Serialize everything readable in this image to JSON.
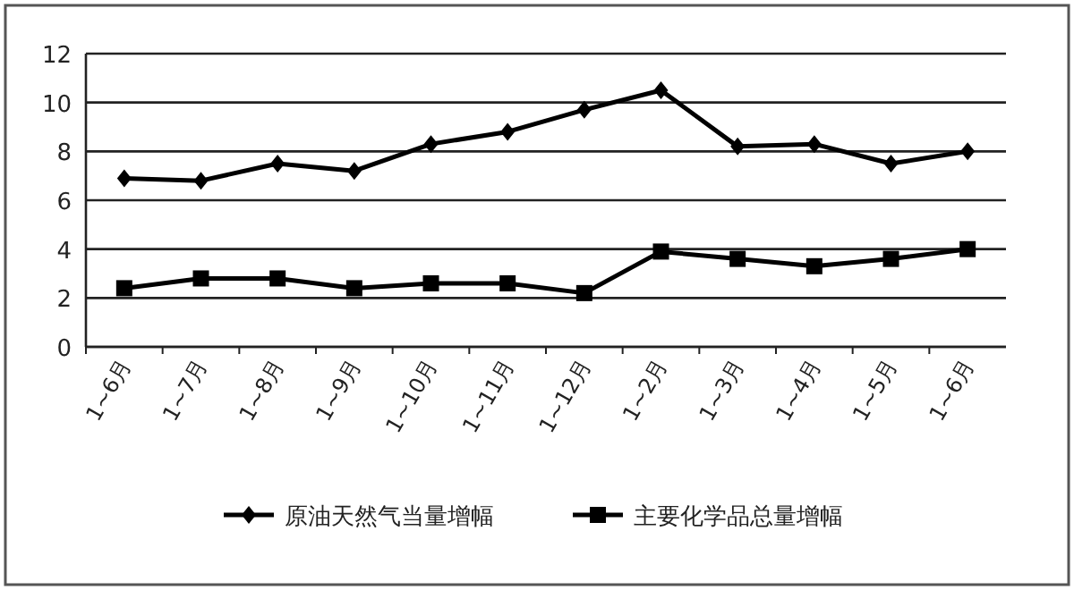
{
  "chart_data": {
    "type": "line",
    "categories": [
      "1~6月",
      "1~7月",
      "1~8月",
      "1~9月",
      "1~10月",
      "1~11月",
      "1~12月",
      "1~2月",
      "1~3月",
      "1~4月",
      "1~5月",
      "1~6月"
    ],
    "series": [
      {
        "name": "原油天然气当量增幅",
        "color": "#000000",
        "marker": "diamond",
        "values": [
          6.9,
          6.8,
          7.5,
          7.2,
          8.3,
          8.8,
          9.7,
          10.5,
          8.2,
          8.3,
          7.5,
          8.0
        ]
      },
      {
        "name": "主要化学品总量增幅",
        "color": "#000000",
        "marker": "square",
        "values": [
          2.4,
          2.8,
          2.8,
          2.4,
          2.6,
          2.6,
          2.2,
          3.9,
          3.6,
          3.3,
          3.6,
          4.0
        ]
      }
    ],
    "ylim": [
      0,
      12
    ],
    "yticks": [
      0,
      2,
      4,
      6,
      8,
      10,
      12
    ],
    "grid": "y",
    "legend": "bottom",
    "line_style": "solid"
  }
}
